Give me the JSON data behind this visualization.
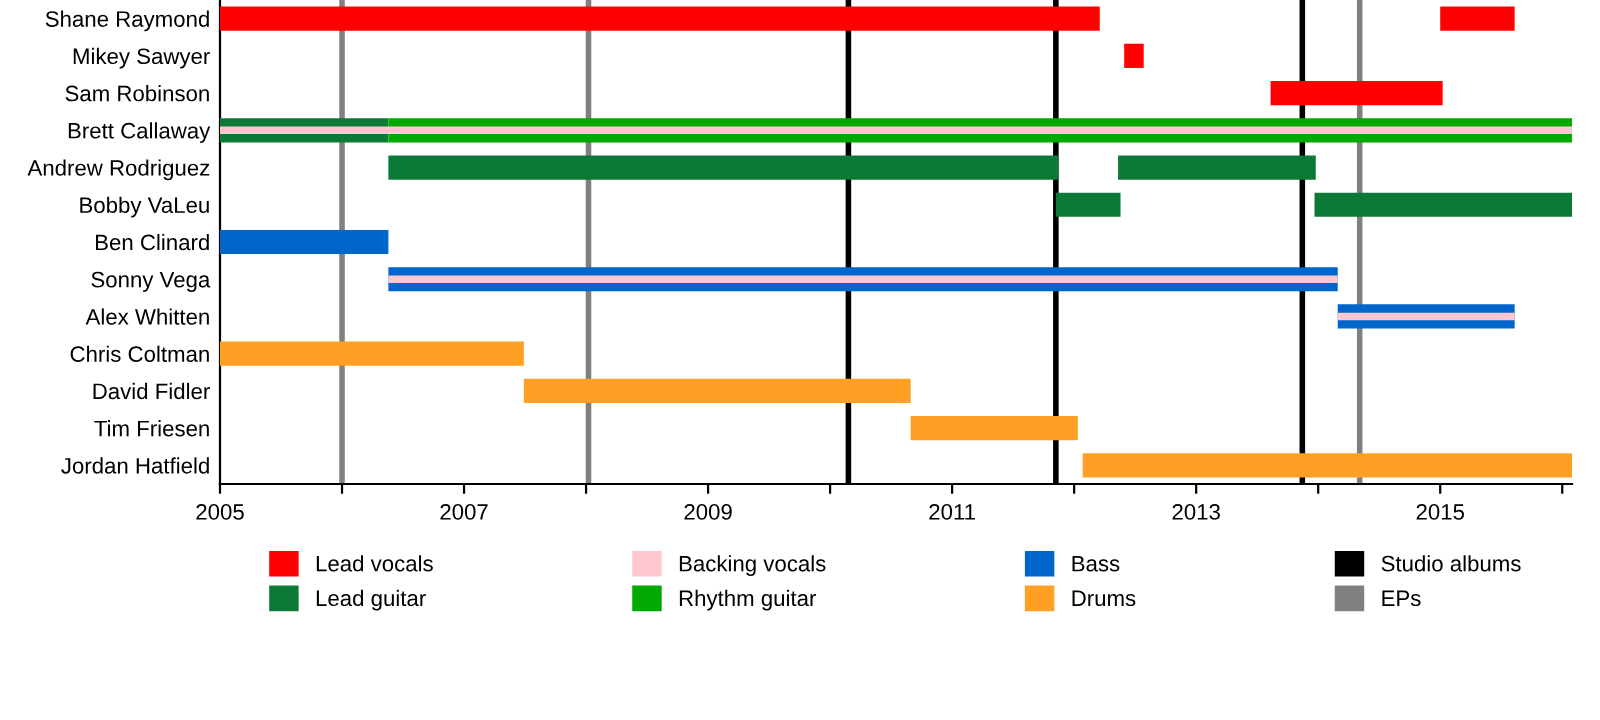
{
  "chart_data": {
    "type": "bar",
    "orientation": "horizontal",
    "categories": [
      "Shane Raymond",
      "Mikey Sawyer",
      "Sam Robinson",
      "Brett Callaway",
      "Andrew Rodriguez",
      "Bobby VaLeu",
      "Ben Clinard",
      "Sonny Vega",
      "Alex Whitten",
      "Chris Coltman",
      "David Fidler",
      "Tim Friesen",
      "Jordan Hatfield"
    ],
    "series": [
      {
        "name": "Lead vocals",
        "color": "#ff0000",
        "base": [
          2005,
          2012.41,
          2013.61,
          null,
          null,
          null,
          null,
          null,
          null,
          null,
          null,
          null,
          null
        ],
        "values": [
          7.21,
          0.16,
          1.41,
          null,
          null,
          null,
          null,
          null,
          null,
          null,
          null,
          null,
          null
        ]
      },
      {
        "name": "Lead guitar",
        "color": "#0b7a36",
        "base": [
          null,
          null,
          null,
          2005,
          2006.38,
          2011.85,
          null,
          null,
          null,
          null,
          null,
          null,
          null
        ],
        "values": [
          null,
          null,
          null,
          1.38,
          5.49,
          0.53,
          null,
          null,
          null,
          null,
          null,
          null,
          null
        ]
      },
      {
        "name": "Backing vocals",
        "color": "#ffc8d0",
        "base": [
          null,
          null,
          null,
          2005,
          null,
          null,
          null,
          2006.38,
          2014.16,
          null,
          null,
          null,
          null
        ],
        "values": [
          null,
          null,
          null,
          11.08,
          null,
          null,
          null,
          7.78,
          1.45,
          null,
          null,
          null,
          null
        ]
      },
      {
        "name": "Rhythm guitar",
        "color": "#00aa00",
        "base": [
          null,
          null,
          null,
          2006.38,
          null,
          null,
          null,
          null,
          null,
          null,
          null,
          null,
          null
        ],
        "values": [
          null,
          null,
          null,
          9.7,
          null,
          null,
          null,
          null,
          null,
          null,
          null,
          null,
          null
        ]
      },
      {
        "name": "Bass",
        "color": "#0066cc",
        "base": [
          null,
          null,
          null,
          null,
          null,
          null,
          2005,
          2006.38,
          2014.16,
          null,
          null,
          null,
          null
        ],
        "values": [
          null,
          null,
          null,
          null,
          null,
          null,
          1.38,
          7.78,
          1.45,
          null,
          null,
          null,
          null
        ]
      },
      {
        "name": "Drums",
        "color": "#ffa024",
        "base": [
          null,
          null,
          null,
          null,
          null,
          null,
          null,
          null,
          null,
          2005,
          2007.49,
          2010.66,
          2012.07
        ],
        "values": [
          null,
          null,
          null,
          null,
          null,
          null,
          null,
          null,
          null,
          2.49,
          3.17,
          1.37,
          4.01
        ]
      },
      {
        "color": "#ff0000",
        "base": [
          2015.0,
          null,
          null,
          null,
          null,
          null,
          null,
          null,
          null,
          null,
          null,
          null,
          null
        ],
        "values": [
          0.61,
          null,
          null,
          null,
          null,
          null,
          null,
          null,
          null,
          null,
          null,
          null,
          null
        ]
      },
      {
        "color": "#0b7a36",
        "base": [
          null,
          null,
          null,
          null,
          2012.36,
          2013.97,
          null,
          null,
          null,
          null,
          null,
          null,
          null
        ],
        "values": [
          null,
          null,
          null,
          null,
          1.62,
          2.11,
          null,
          null,
          null,
          null,
          null,
          null,
          null
        ]
      }
    ],
    "ref_lines": [
      {
        "axis": "x",
        "value": 2010.15,
        "label": "Studio albums",
        "color": "#000000"
      },
      {
        "axis": "x",
        "value": 2011.85,
        "color": "#000000"
      },
      {
        "axis": "x",
        "value": 2013.87,
        "color": "#000000"
      },
      {
        "axis": "x",
        "value": 2006.0,
        "label": "EPs",
        "color": "#808080"
      },
      {
        "axis": "x",
        "value": 2008.02,
        "color": "#808080"
      },
      {
        "axis": "x",
        "value": 2014.34,
        "color": "#808080"
      }
    ],
    "xlim": [
      2005,
      2016.08
    ],
    "xticks": [
      2005,
      {
        "value": 2006,
        "label": null
      },
      2007,
      {
        "value": 2008,
        "label": null
      },
      2009,
      {
        "value": 2010,
        "label": null
      },
      2011,
      {
        "value": 2012,
        "label": null
      },
      2013,
      {
        "value": 2014,
        "label": null
      },
      2015,
      {
        "value": 2016,
        "label": null
      }
    ],
    "grid": false,
    "legend": "bottom"
  }
}
